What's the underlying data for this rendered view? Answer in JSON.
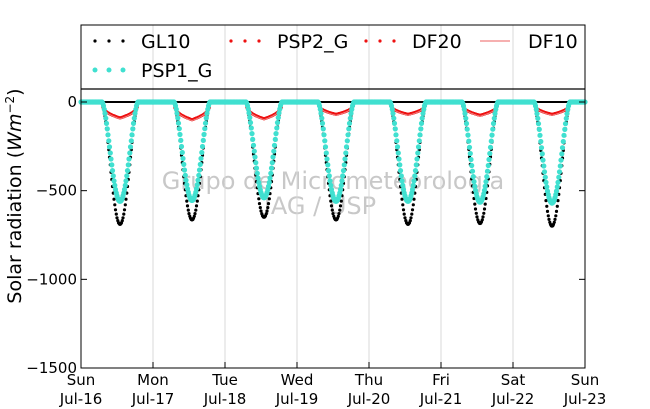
{
  "chart_data": {
    "type": "scatter",
    "title": "",
    "xlabel": "",
    "ylabel": "Solar radiation ($Wm^{-2}$)",
    "ylabel_text": "Solar radiation (",
    "ylabel_unit_base": "Wm",
    "ylabel_unit_exp": "−2",
    "ylabel_close": ")",
    "ylim": [
      -1500,
      80
    ],
    "yticks": [
      0,
      -500,
      -1000,
      -1500
    ],
    "ytick_labels": [
      "0",
      "−500",
      "−1000",
      "−1500"
    ],
    "xlim": [
      0,
      7
    ],
    "xticks": [
      0,
      1,
      2,
      3,
      4,
      5,
      6,
      7
    ],
    "xtick_labels": [
      {
        "day": "Sun",
        "date": "Jul-16"
      },
      {
        "day": "Mon",
        "date": "Jul-17"
      },
      {
        "day": "Tue",
        "date": "Jul-18"
      },
      {
        "day": "Wed",
        "date": "Jul-19"
      },
      {
        "day": "Thu",
        "date": "Jul-20"
      },
      {
        "day": "Fri",
        "date": "Jul-21"
      },
      {
        "day": "Sat",
        "date": "Jul-22"
      },
      {
        "day": "Sun",
        "date": "Jul-23"
      }
    ],
    "grid": {
      "x": true,
      "y": false
    },
    "legend_location": "top",
    "daily_peak_hour": 13,
    "daylight_start_hour": 7,
    "daylight_end_hour": 19,
    "series": [
      {
        "name": "GL10",
        "style": "dots",
        "color": "#000000",
        "daily_min": [
          -690,
          -665,
          -650,
          -665,
          -690,
          -685,
          -700
        ]
      },
      {
        "name": "PSP2_G",
        "style": "dots",
        "color": "#ee1111",
        "daily_min": [
          -90,
          -100,
          -95,
          -70,
          -70,
          -75,
          -70
        ]
      },
      {
        "name": "DF20",
        "style": "dots",
        "color": "#ee1111",
        "daily_min": [
          -90,
          -100,
          -95,
          -70,
          -70,
          -75,
          -70
        ]
      },
      {
        "name": "DF10",
        "style": "line",
        "color": "#f08080",
        "daily_min": [
          -95,
          -105,
          -100,
          -75,
          -75,
          -80,
          -75
        ]
      },
      {
        "name": "PSP1_G",
        "style": "dots",
        "color": "#40e0d0",
        "daily_min": [
          -560,
          -555,
          -540,
          -560,
          -560,
          -565,
          -570
        ]
      }
    ]
  },
  "watermark": {
    "line1": "Grupo de Micrometeorologia",
    "line2": "IAG / USP"
  }
}
